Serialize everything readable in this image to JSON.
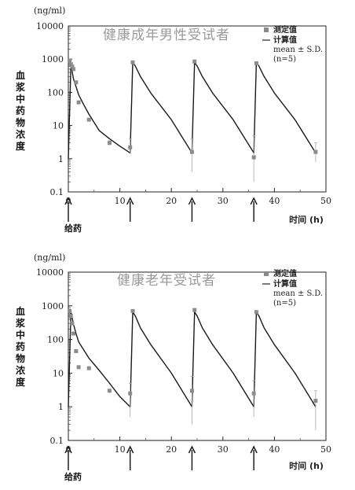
{
  "chart_data": [
    {
      "type": "line",
      "title": "健康成年男性受试者",
      "unit_label": "(ng/ml)",
      "ylabel": "血浆中药物浓度",
      "xlabel": "时间 (h)",
      "dose_label": "给药",
      "y_scale": "log",
      "ylim": [
        0.1,
        10000
      ],
      "xlim": [
        0,
        50
      ],
      "y_ticks": [
        "0.1",
        "1",
        "10",
        "100",
        "1000",
        "10000"
      ],
      "x_ticks": [
        "0",
        "10",
        "20",
        "30",
        "40",
        "50"
      ],
      "dose_times": [
        0,
        12,
        24,
        36
      ],
      "legend": {
        "placement": "top-right",
        "observed": "测定值",
        "predicted": "计算值",
        "errorbar": "mean ± S.D.",
        "n": "(n=5)"
      },
      "series": [
        {
          "name": "计算值",
          "kind": "line",
          "x": [
            0,
            0.5,
            1,
            1.5,
            2,
            3,
            4,
            6,
            8,
            10,
            12,
            12.5,
            13,
            14,
            16,
            20,
            24,
            24.5,
            25,
            26,
            28,
            32,
            36,
            36.5,
            37,
            38,
            40,
            44,
            48
          ],
          "y": [
            1,
            700,
            250,
            150,
            85,
            42,
            22,
            7,
            4,
            2.4,
            1.5,
            800,
            620,
            300,
            95,
            15,
            1.5,
            800,
            620,
            300,
            95,
            15,
            1.5,
            800,
            620,
            300,
            95,
            15,
            1.5
          ]
        },
        {
          "name": "测定值",
          "kind": "points",
          "x": [
            0.25,
            0.5,
            0.75,
            1,
            1.5,
            2,
            4,
            8,
            12,
            12.5,
            24,
            24.5,
            36,
            36.5,
            48
          ],
          "y": [
            900,
            700,
            600,
            500,
            200,
            50,
            15,
            3,
            2.2,
            800,
            1.6,
            850,
            1.1,
            750,
            1.6
          ],
          "err_low": [
            null,
            null,
            null,
            null,
            null,
            null,
            null,
            2.5,
            1.5,
            null,
            0.4,
            null,
            0.2,
            null,
            0.8
          ],
          "err_high": [
            null,
            null,
            null,
            null,
            null,
            null,
            null,
            3.5,
            4,
            null,
            4,
            null,
            5,
            null,
            3
          ]
        }
      ]
    },
    {
      "type": "line",
      "title": "健康老年受试者",
      "unit_label": "(ng/ml)",
      "ylabel": "血浆中药物浓度",
      "xlabel": "时间 (h)",
      "dose_label": "给药",
      "y_scale": "log",
      "ylim": [
        0.1,
        10000
      ],
      "xlim": [
        0,
        50
      ],
      "y_ticks": [
        "0.1",
        "1",
        "10",
        "100",
        "1000",
        "10000"
      ],
      "x_ticks": [
        "0",
        "10",
        "20",
        "30",
        "40",
        "50"
      ],
      "dose_times": [
        0,
        12,
        24,
        36
      ],
      "legend": {
        "placement": "top-right",
        "observed": "测定值",
        "predicted": "计算值",
        "errorbar": "mean ± S.D.",
        "n": "(n=5)"
      },
      "series": [
        {
          "name": "计算值",
          "kind": "line",
          "x": [
            0,
            0.5,
            1,
            1.5,
            2,
            4,
            6,
            8,
            10,
            12,
            12.5,
            13,
            14,
            16,
            20,
            24,
            24.5,
            25,
            26,
            28,
            32,
            36,
            36.5,
            37,
            38,
            40,
            44,
            48
          ],
          "y": [
            1,
            650,
            280,
            150,
            85,
            28,
            12,
            5,
            2,
            1,
            650,
            500,
            220,
            70,
            10,
            1,
            650,
            500,
            220,
            70,
            10,
            1,
            650,
            500,
            220,
            70,
            10,
            1
          ],
          "stop_at": 48
        },
        {
          "name": "测定值",
          "kind": "points",
          "x": [
            0.25,
            0.5,
            0.75,
            1,
            1.5,
            2,
            4,
            8,
            12,
            12.5,
            24,
            24.5,
            36,
            36.5,
            48
          ],
          "y": [
            700,
            500,
            300,
            150,
            45,
            15,
            14,
            3,
            2.5,
            700,
            3,
            750,
            2.5,
            650,
            1.5
          ],
          "err_low": [
            null,
            null,
            null,
            null,
            null,
            null,
            null,
            null,
            0.5,
            null,
            0.3,
            null,
            0.5,
            null,
            0.2
          ],
          "err_high": [
            null,
            null,
            null,
            null,
            null,
            null,
            null,
            null,
            5,
            null,
            8,
            null,
            6,
            null,
            3
          ]
        }
      ]
    }
  ]
}
